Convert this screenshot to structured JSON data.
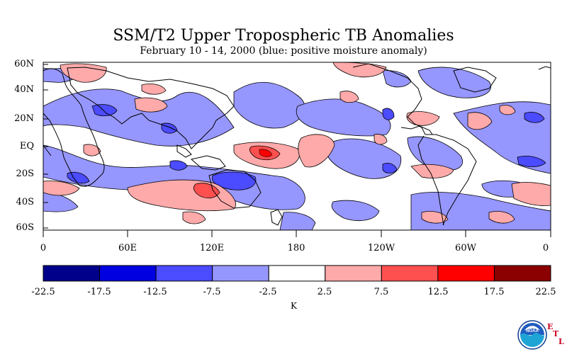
{
  "title": "SSM/T2 Upper Tropospheric TB Anomalies",
  "subtitle": "February 10 - 14, 2000 (blue: positive moisture anomaly)",
  "lat_ticks": [
    "60N",
    "40N",
    "20N",
    "EQ",
    "20S",
    "40S",
    "60S"
  ],
  "lon_ticks": [
    "0",
    "60E",
    "120E",
    "180",
    "120W",
    "60W",
    "0"
  ],
  "colorbar": {
    "boundaries": [
      "-22.5",
      "-17.5",
      "-12.5",
      "-7.5",
      "-2.5",
      "2.5",
      "7.5",
      "12.5",
      "17.5",
      "22.5"
    ],
    "colors": [
      "#00008b",
      "#0000e0",
      "#4b4bff",
      "#9696ff",
      "#ffffff",
      "#ffaaaa",
      "#ff5050",
      "#ff0000",
      "#8b0000"
    ],
    "unit": "K"
  },
  "logo": {
    "agency": "NOAA",
    "lab_letters": [
      "E",
      "T",
      "L"
    ]
  }
}
